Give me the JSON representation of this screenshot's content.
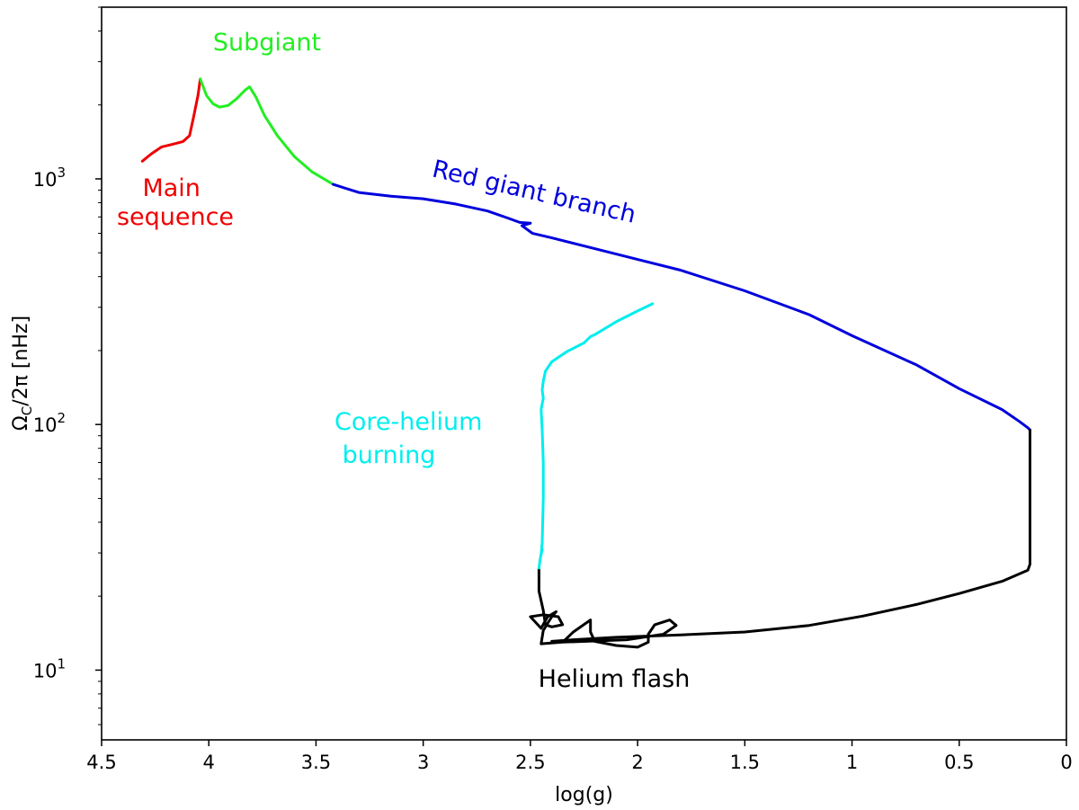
{
  "chart_data": {
    "type": "line",
    "title": "",
    "xlabel": "log(g)",
    "ylabel": {
      "main": "Ω",
      "sub": "C",
      "rest": "/2π [nHz]"
    },
    "xlim": [
      4.5,
      0
    ],
    "ylim": [
      5.2,
      5000
    ],
    "yscale": "log",
    "xticks": [
      4.5,
      4,
      3.5,
      3,
      2.5,
      2,
      1.5,
      1,
      0.5,
      0
    ],
    "xtick_labels": [
      "4.5",
      "4",
      "3.5",
      "3",
      "2.5",
      "2",
      "1.5",
      "1",
      "0.5",
      "0"
    ],
    "yticks": [
      {
        "value": 10,
        "base": "10",
        "exp": "1"
      },
      {
        "value": 100,
        "base": "10",
        "exp": "2"
      },
      {
        "value": 1000,
        "base": "10",
        "exp": "3"
      }
    ],
    "series": [
      {
        "name": "Main sequence",
        "color": "#ee0000",
        "points": [
          [
            4.31,
            1180
          ],
          [
            4.27,
            1260
          ],
          [
            4.22,
            1350
          ],
          [
            4.16,
            1390
          ],
          [
            4.12,
            1420
          ],
          [
            4.09,
            1500
          ],
          [
            4.07,
            1800
          ],
          [
            4.05,
            2200
          ],
          [
            4.04,
            2550
          ]
        ]
      },
      {
        "name": "Subgiant",
        "color": "#22ee22",
        "points": [
          [
            4.04,
            2550
          ],
          [
            4.01,
            2180
          ],
          [
            3.98,
            2020
          ],
          [
            3.95,
            1960
          ],
          [
            3.91,
            1990
          ],
          [
            3.87,
            2120
          ],
          [
            3.83,
            2300
          ],
          [
            3.81,
            2370
          ],
          [
            3.78,
            2150
          ],
          [
            3.74,
            1810
          ],
          [
            3.68,
            1500
          ],
          [
            3.6,
            1230
          ],
          [
            3.52,
            1070
          ],
          [
            3.42,
            950
          ]
        ]
      },
      {
        "name": "Red giant branch",
        "color": "#0000dd",
        "points": [
          [
            3.42,
            950
          ],
          [
            3.3,
            880
          ],
          [
            3.15,
            850
          ],
          [
            3.0,
            830
          ],
          [
            2.85,
            790
          ],
          [
            2.7,
            740
          ],
          [
            2.6,
            690
          ],
          [
            2.55,
            665
          ],
          [
            2.5,
            660
          ],
          [
            2.54,
            645
          ],
          [
            2.49,
            600
          ],
          [
            2.4,
            575
          ],
          [
            2.2,
            520
          ],
          [
            2.0,
            470
          ],
          [
            1.8,
            425
          ],
          [
            1.5,
            350
          ],
          [
            1.2,
            280
          ],
          [
            1.0,
            230
          ],
          [
            0.7,
            175
          ],
          [
            0.5,
            140
          ],
          [
            0.3,
            115
          ],
          [
            0.22,
            103
          ],
          [
            0.18,
            97
          ],
          [
            0.17,
            95
          ]
        ]
      },
      {
        "name": "Helium flash",
        "color": "#000000",
        "points": [
          [
            0.17,
            95
          ],
          [
            0.17,
            70
          ],
          [
            0.17,
            40
          ],
          [
            0.17,
            27
          ],
          [
            0.18,
            25.5
          ],
          [
            0.3,
            23
          ],
          [
            0.5,
            20.5
          ],
          [
            0.7,
            18.5
          ],
          [
            0.95,
            16.6
          ],
          [
            1.2,
            15.2
          ],
          [
            1.5,
            14.3
          ],
          [
            1.8,
            13.9
          ],
          [
            2.1,
            13.6
          ],
          [
            2.3,
            13.3
          ],
          [
            2.4,
            13.1
          ],
          [
            2.35,
            13.0
          ],
          [
            2.05,
            13.3
          ],
          [
            1.88,
            14.0
          ],
          [
            1.82,
            15.2
          ],
          [
            1.85,
            16.0
          ],
          [
            1.92,
            15.3
          ],
          [
            1.95,
            14.0
          ],
          [
            1.95,
            13.0
          ],
          [
            2.0,
            12.4
          ],
          [
            2.1,
            12.6
          ],
          [
            2.2,
            13.1
          ],
          [
            2.22,
            14.3
          ],
          [
            2.22,
            16.0
          ],
          [
            2.3,
            14.3
          ],
          [
            2.35,
            13.0
          ],
          [
            2.45,
            12.8
          ],
          [
            2.44,
            14.5
          ],
          [
            2.42,
            15.5
          ],
          [
            2.4,
            16.5
          ],
          [
            2.38,
            17.3
          ],
          [
            2.42,
            16.5
          ],
          [
            2.45,
            14.8
          ],
          [
            2.5,
            16.5
          ],
          [
            2.44,
            16.8
          ],
          [
            2.37,
            16.5
          ],
          [
            2.35,
            15.3
          ],
          [
            2.4,
            15.0
          ],
          [
            2.43,
            15.3
          ],
          [
            2.44,
            17.5
          ],
          [
            2.46,
            21.0
          ],
          [
            2.46,
            26.0
          ]
        ]
      },
      {
        "name": "Core-helium burning",
        "color": "#00eeee",
        "points": [
          [
            2.46,
            26.0
          ],
          [
            2.455,
            28.0
          ],
          [
            2.45,
            29.8
          ],
          [
            2.445,
            31.0
          ],
          [
            2.45,
            29.5
          ],
          [
            2.445,
            33.0
          ],
          [
            2.44,
            50.0
          ],
          [
            2.44,
            70.0
          ],
          [
            2.445,
            95.0
          ],
          [
            2.45,
            115.0
          ],
          [
            2.44,
            128.0
          ],
          [
            2.445,
            138.0
          ],
          [
            2.44,
            150.0
          ],
          [
            2.43,
            165.0
          ],
          [
            2.4,
            180.0
          ],
          [
            2.33,
            198.0
          ],
          [
            2.25,
            215.0
          ],
          [
            2.22,
            228.0
          ],
          [
            2.2,
            232.0
          ],
          [
            2.1,
            262.0
          ],
          [
            2.0,
            290.0
          ],
          [
            1.93,
            310.0
          ]
        ]
      }
    ],
    "annotations": [
      {
        "id": "main",
        "lines": [
          "Main",
          "sequence"
        ],
        "color": "#ee0000"
      },
      {
        "id": "subgiant",
        "lines": [
          "Subgiant"
        ],
        "color": "#22ee22"
      },
      {
        "id": "rgb",
        "lines": [
          "Red giant branch"
        ],
        "color": "#0000dd"
      },
      {
        "id": "cheb",
        "lines": [
          "Core-helium",
          " burning"
        ],
        "color": "#00eeee"
      },
      {
        "id": "flash",
        "lines": [
          "Helium flash"
        ],
        "color": "#000000"
      }
    ]
  }
}
